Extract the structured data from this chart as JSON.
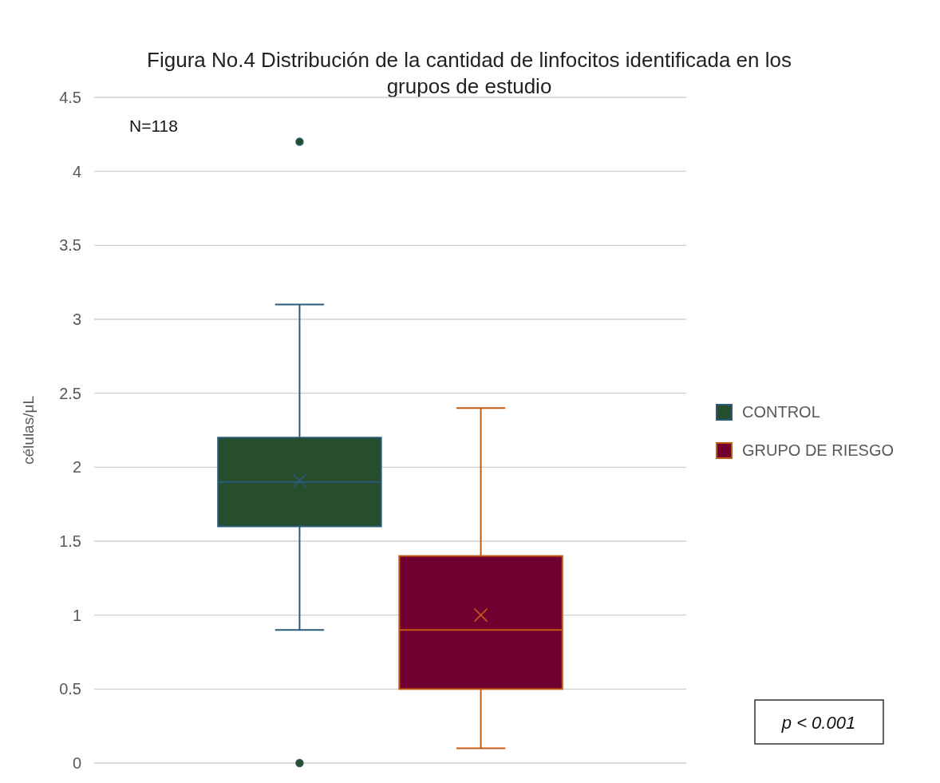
{
  "chart_data": {
    "type": "box",
    "title": "Figura No.4 Distribución de la cantidad de linfocitos identificada en los grupos de estudio",
    "ylabel": "células/μL",
    "categories": [
      null
    ],
    "series": [
      {
        "name": "CONTROL",
        "color": "#264d2c",
        "boxes": [
          {
            "low": 0.9,
            "q1": 1.6,
            "median": 1.9,
            "q3": 2.2,
            "high": 3.1,
            "mean": 1.91,
            "outliers": [
              4.2,
              0
            ]
          }
        ]
      },
      {
        "name": "GRUPO DE RIESGO",
        "color": "#700030",
        "boxes": [
          {
            "low": 0.1,
            "q1": 0.5,
            "median": 0.9,
            "q3": 1.4,
            "high": 2.4,
            "mean": 1.0
          }
        ]
      }
    ],
    "ylim": [
      0,
      4.5
    ],
    "yticks": [
      0,
      0.5,
      1,
      1.5,
      2,
      2.5,
      3,
      3.5,
      4,
      4.5
    ],
    "grid": "y",
    "legend": "right",
    "annotations": [
      "N=118",
      "p < 0.001"
    ]
  }
}
